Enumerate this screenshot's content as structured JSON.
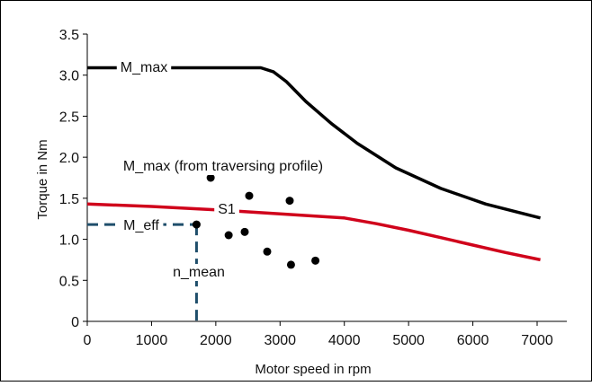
{
  "chart_data": {
    "type": "line",
    "title": "",
    "xlabel": "Motor speed in rpm",
    "ylabel": "Torque in Nm",
    "xlim": [
      0,
      7000
    ],
    "ylim": [
      0,
      3.5
    ],
    "x_ticks": [
      "0",
      "1000",
      "2000",
      "3000",
      "4000",
      "5000",
      "6000",
      "7000"
    ],
    "y_ticks": [
      "0",
      "0.5",
      "1.0",
      "1.5",
      "2.0",
      "2.5",
      "3.0",
      "3.5"
    ],
    "grid": false,
    "legend": "none",
    "series": [
      {
        "name": "M_max",
        "color": "#000000",
        "x": [
          0,
          2700,
          2900,
          3100,
          3400,
          3800,
          4200,
          4800,
          5500,
          6200,
          7050
        ],
        "y": [
          3.09,
          3.09,
          3.04,
          2.92,
          2.68,
          2.41,
          2.17,
          1.87,
          1.62,
          1.43,
          1.26
        ]
      },
      {
        "name": "S1",
        "color": "#d0021b",
        "x": [
          0,
          1000,
          2000,
          3000,
          4000,
          4500,
          5000,
          5500,
          6000,
          6500,
          7050
        ],
        "y": [
          1.43,
          1.4,
          1.36,
          1.31,
          1.26,
          1.19,
          1.11,
          1.02,
          0.93,
          0.84,
          0.75
        ]
      }
    ],
    "points": {
      "name": "M_max (from traversing profile)",
      "x": [
        1700,
        1920,
        2200,
        2450,
        2520,
        2800,
        3150,
        3170,
        3550
      ],
      "y": [
        1.18,
        1.75,
        1.05,
        1.09,
        1.53,
        0.85,
        1.47,
        0.69,
        0.74
      ]
    },
    "reference": {
      "M_eff": {
        "label": "M_eff",
        "value": 1.18,
        "color": "#1f4e6b"
      },
      "n_mean": {
        "label": "n_mean",
        "value": 1700,
        "color": "#1f4e6b"
      }
    },
    "annotations": {
      "m_max_label": "M_max",
      "profile_label": "M_max (from traversing profile)",
      "s1_label": "S1"
    }
  }
}
